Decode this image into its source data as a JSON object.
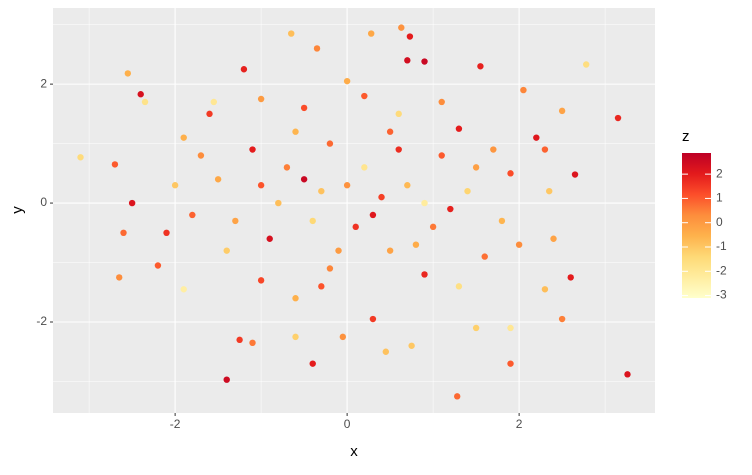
{
  "chart_data": {
    "type": "scatter",
    "x_label": "x",
    "y_label": "y",
    "x": [
      -1.4,
      3.26,
      1.28,
      3.15,
      -3.1,
      -2.55,
      -2.4,
      -2.35,
      2.78,
      0.63,
      0.73,
      0.7,
      0.9,
      -1.2,
      -0.65,
      -0.35,
      0.28,
      1.55,
      -2.65,
      -1.9,
      -0.4,
      1.9,
      1.5,
      1.9,
      2.5,
      2.6,
      2.65,
      2.5,
      2.05,
      -2.7,
      -2.6,
      -2.5,
      -2.2,
      -1.1,
      -1.25,
      0.45,
      0.75,
      -0.6,
      -0.05,
      0.3,
      2.3,
      2.4,
      2.3,
      2.2,
      2.35,
      -1.9,
      -1.6,
      -1.55,
      -1.0,
      -0.5,
      0.0,
      0.2,
      0.6,
      1.1,
      1.3,
      1.7,
      1.9,
      1.8,
      1.6,
      1.3,
      0.9,
      0.5,
      0.1,
      -0.3,
      -0.7,
      -1.1,
      -1.5,
      -1.8,
      -1.4,
      -1.0,
      -0.6,
      -0.2,
      0.3,
      0.7,
      1.1,
      1.4,
      1.0,
      0.6,
      0.2,
      -0.2,
      -0.6,
      -1.0,
      -1.3,
      -0.9,
      -0.4,
      0.0,
      0.4,
      0.8,
      1.2,
      -0.1,
      -0.8,
      0.5,
      -0.3,
      1.5,
      -1.7,
      -2.0,
      -2.1,
      2.0,
      -0.5,
      0.9
    ],
    "values": [
      -2.97,
      -2.88,
      -3.25,
      1.43,
      0.77,
      2.18,
      1.83,
      1.7,
      2.33,
      2.95,
      2.8,
      2.4,
      2.38,
      2.25,
      2.85,
      2.6,
      2.85,
      2.3,
      -1.25,
      -1.45,
      -2.7,
      -2.7,
      -2.1,
      -2.1,
      -1.95,
      -1.25,
      0.48,
      1.55,
      1.9,
      0.65,
      -0.5,
      0.0,
      -1.05,
      -2.35,
      -2.3,
      -2.5,
      -2.4,
      -2.25,
      -2.25,
      -1.95,
      -1.45,
      -0.6,
      0.9,
      1.1,
      0.2,
      1.1,
      1.5,
      1.7,
      1.75,
      1.6,
      2.05,
      1.8,
      1.5,
      1.7,
      1.25,
      0.9,
      0.5,
      -0.3,
      -0.9,
      -1.4,
      -1.2,
      -0.8,
      -0.4,
      0.2,
      0.6,
      0.9,
      0.4,
      -0.2,
      -0.8,
      -1.3,
      -1.6,
      -1.1,
      -0.2,
      0.3,
      0.8,
      0.2,
      -0.4,
      0.9,
      0.6,
      1.0,
      1.2,
      0.3,
      -0.3,
      -0.6,
      -0.3,
      0.3,
      0.1,
      -0.7,
      -0.1,
      -0.8,
      0.0,
      1.2,
      -1.4,
      0.6,
      0.8,
      0.3,
      -0.5,
      -0.7,
      0.4,
      0.0
    ],
    "z": [
      2.5,
      2.2,
      0.8,
      1.8,
      -1.5,
      -0.5,
      2.3,
      -1.8,
      -1.6,
      0.2,
      2.0,
      2.4,
      2.6,
      1.9,
      -0.8,
      0.4,
      -0.3,
      1.9,
      0.3,
      -2.3,
      2.0,
      1.0,
      -1.2,
      -2.0,
      0.5,
      2.0,
      2.2,
      -0.2,
      0.4,
      1.0,
      0.8,
      2.2,
      1.0,
      0.6,
      1.5,
      -0.9,
      -1.0,
      -1.2,
      0.2,
      1.5,
      -0.8,
      -0.2,
      0.9,
      2.1,
      -1.0,
      -0.5,
      1.5,
      -2.0,
      0.0,
      1.2,
      -0.4,
      1.0,
      -1.5,
      0.3,
      2.0,
      0.1,
      1.2,
      -0.6,
      0.7,
      -1.7,
      1.8,
      -0.2,
      1.6,
      -0.9,
      0.5,
      2.0,
      -0.3,
      0.9,
      -1.1,
      1.3,
      -0.5,
      0.4,
      2.1,
      -0.7,
      1.0,
      -1.3,
      0.6,
      1.7,
      -1.9,
      0.8,
      -0.6,
      1.1,
      -0.2,
      2.3,
      -1.4,
      0.2,
      1.4,
      -0.4,
      1.9,
      0.0,
      -0.8,
      0.9,
      1.1,
      -0.1,
      0.3,
      -1.0,
      1.6,
      0.3,
      2.6,
      -2.2
    ],
    "xlim": [
      -3.42,
      3.58
    ],
    "ylim": [
      -3.53,
      3.28
    ],
    "xticks": [
      -2,
      0,
      2
    ],
    "yticks": [
      -2,
      0,
      2
    ],
    "x_minor": [
      -3,
      -1,
      1,
      3
    ],
    "y_minor": [
      -3,
      -1,
      1,
      3
    ],
    "grid": true,
    "legend_title": "z",
    "zlim": [
      -3.1,
      2.87
    ],
    "zticks": [
      -3,
      -2,
      -1,
      0,
      1,
      2
    ],
    "colors": [
      "#FFFFCC",
      "#FFEDA0",
      "#FED976",
      "#FEB24C",
      "#FD8D3C",
      "#FC4E2A",
      "#E31A1C",
      "#BD0026"
    ]
  }
}
